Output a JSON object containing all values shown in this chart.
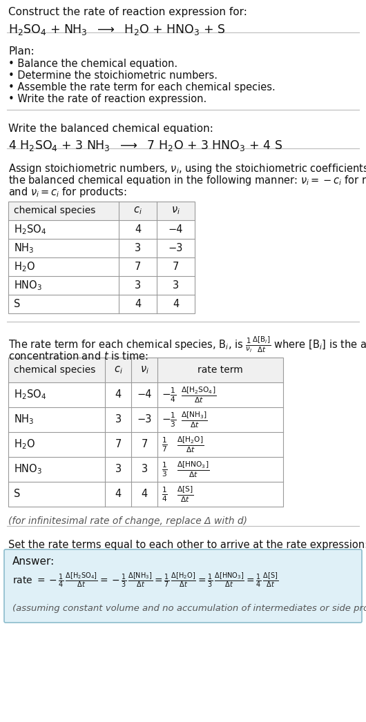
{
  "title_line1": "Construct the rate of reaction expression for:",
  "plan_header": "Plan:",
  "plan_items": [
    "• Balance the chemical equation.",
    "• Determine the stoichiometric numbers.",
    "• Assemble the rate term for each chemical species.",
    "• Write the rate of reaction expression."
  ],
  "balanced_header": "Write the balanced chemical equation:",
  "stoich_intro_lines": [
    "Assign stoichiometric numbers, $\\nu_i$, using the stoichiometric coefficients, $c_i$, from",
    "the balanced chemical equation in the following manner: $\\nu_i = -c_i$ for reactants",
    "and $\\nu_i = c_i$ for products:"
  ],
  "table1_species": [
    "H$_2$SO$_4$",
    "NH$_3$",
    "H$_2$O",
    "HNO$_3$",
    "S"
  ],
  "table1_ci": [
    "4",
    "3",
    "7",
    "3",
    "4"
  ],
  "table1_nui": [
    "−4",
    "−3",
    "7",
    "3",
    "4"
  ],
  "rate_intro_line1": "The rate term for each chemical species, B$_i$, is $\\frac{1}{\\nu_i}\\frac{\\Delta[\\mathrm{B}_i]}{\\Delta t}$ where [B$_i$] is the amount",
  "rate_intro_line2": "concentration and $t$ is time:",
  "table2_species": [
    "H$_2$SO$_4$",
    "NH$_3$",
    "H$_2$O",
    "HNO$_3$",
    "S"
  ],
  "table2_ci": [
    "4",
    "3",
    "7",
    "3",
    "4"
  ],
  "table2_nui": [
    "−4",
    "−3",
    "7",
    "3",
    "4"
  ],
  "table2_rate_coeffs": [
    "$-\\frac{1}{4}$",
    "$-\\frac{1}{3}$",
    "$\\frac{1}{7}$",
    "$\\frac{1}{3}$",
    "$\\frac{1}{4}$"
  ],
  "table2_rate_fracs": [
    "$\\frac{\\Delta[\\mathrm{H_2SO_4}]}{\\Delta t}$",
    "$\\frac{\\Delta[\\mathrm{NH_3}]}{\\Delta t}$",
    "$\\frac{\\Delta[\\mathrm{H_2O}]}{\\Delta t}$",
    "$\\frac{\\Delta[\\mathrm{HNO_3}]}{\\Delta t}$",
    "$\\frac{\\Delta[\\mathrm{S}]}{\\Delta t}$"
  ],
  "infinitesimal_note": "(for infinitesimal rate of change, replace Δ with d)",
  "set_equal_text": "Set the rate terms equal to each other to arrive at the rate expression:",
  "answer_label": "Answer:",
  "answer_note": "(assuming constant volume and no accumulation of intermediates or side products)",
  "answer_box_color": "#dff0f7",
  "answer_border_color": "#8bbccc",
  "bg_color": "#ffffff",
  "text_color": "#111111",
  "table_line_color": "#999999",
  "sep_color": "#bbbbbb",
  "header_bg": "#f0f0f0"
}
